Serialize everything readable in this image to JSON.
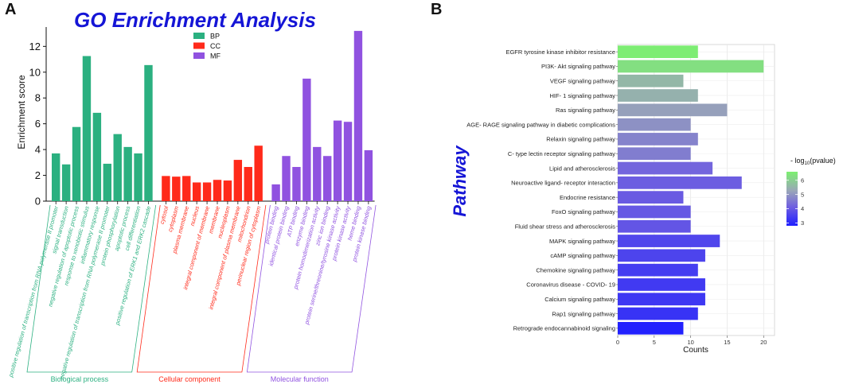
{
  "chart_data": [
    {
      "panel": "A",
      "type": "bar",
      "title": "GO Enrichment Analysis",
      "xlabel": "",
      "ylabel": "Enrichment score",
      "ylim": [
        0,
        13.5
      ],
      "yticks": [
        0,
        2,
        4,
        6,
        8,
        10,
        12
      ],
      "legend": [
        {
          "name": "BP",
          "color": "#2bb080"
        },
        {
          "name": "CC",
          "color": "#ff2a1a"
        },
        {
          "name": "MF",
          "color": "#9052e0"
        }
      ],
      "groups": [
        {
          "name": "Biological process",
          "key": "BP",
          "color": "#2bb080",
          "categories": [
            "positive regulation of transcription from RNA polymerase II promoter",
            "signal transduction",
            "negative regulation of apoptotic process",
            "response to xenobiotic stimulus",
            "inflammatory response",
            "negative regulation of transcription from RNA polymerase II promoter",
            "protein phosphorylation",
            "apoptotic process",
            "cell differentiation",
            "positive regulation of ERK1 and ERK2 cascade"
          ],
          "values": [
            3.7,
            2.85,
            5.75,
            11.25,
            6.85,
            2.9,
            5.2,
            4.2,
            3.7,
            10.55
          ]
        },
        {
          "name": "Cellular component",
          "key": "CC",
          "color": "#ff2a1a",
          "categories": [
            "cytosol",
            "cytoplasm",
            "plasma membrane",
            "nucleus",
            "integral component of membrane",
            "membrane",
            "nucleoplasm",
            "integral component of plasma membrane",
            "mitochondrion",
            "perinuclear region of cytoplasm"
          ],
          "values": [
            1.95,
            1.9,
            1.95,
            1.45,
            1.45,
            1.65,
            1.6,
            3.2,
            2.65,
            4.3
          ]
        },
        {
          "name": "Molecular function",
          "key": "MF",
          "color": "#9052e0",
          "categories": [
            "protein binding",
            "identical protein binding",
            "ATP binding",
            "enzyme binding",
            "protein homodimerization activity",
            "zinc ion binding",
            "protein serine/threonine/tyrosine kinase activity",
            "protein kinase activity",
            "heme binding",
            "protein kinase binding"
          ],
          "values": [
            1.3,
            3.5,
            2.65,
            9.5,
            4.2,
            3.5,
            6.25,
            6.15,
            13.2,
            3.95
          ]
        }
      ]
    },
    {
      "panel": "B",
      "type": "bar",
      "orientation": "horizontal",
      "title": "",
      "ylabel": "Pathway",
      "xlabel": "Counts",
      "xlim": [
        0,
        21.5
      ],
      "xticks": [
        0,
        5,
        10,
        15,
        20
      ],
      "colorbar_title_prefix": "- log",
      "colorbar_title_sub": "10",
      "colorbar_title_suffix": "(pvalue)",
      "colorbar_range": [
        2.8,
        6.6
      ],
      "colorbar_ticks": [
        3,
        4,
        5,
        6
      ],
      "categories": [
        "EGFR tyrosine kinase inhibitor resistance",
        "PI3K- Akt signaling pathway",
        "VEGF signaling pathway",
        "HIF- 1 signaling pathway",
        "Ras signaling pathway",
        "AGE- RAGE signaling pathway in diabetic complications",
        "Relaxin signaling pathway",
        "C- type lectin receptor signaling pathway",
        "Lipid and atherosclerosis",
        "Neuroactive ligand- receptor interaction",
        "Endocrine resistance",
        "FoxO signaling pathway",
        "Fluid shear stress and atherosclerosis",
        "MAPK signaling pathway",
        "cAMP signaling pathway",
        "Chemokine signaling pathway",
        "Coronavirus disease -  COVID- 19",
        "Calcium signaling pathway",
        "Rap1 signaling pathway",
        "Retrograde endocannabinoid signaling"
      ],
      "values": [
        11,
        20,
        9,
        11,
        15,
        10,
        11,
        10,
        13,
        17,
        9,
        10,
        10,
        14,
        12,
        11,
        12,
        12,
        11,
        9
      ],
      "neglog10_pvalue": [
        6.55,
        6.3,
        5.6,
        5.5,
        5.2,
        4.95,
        4.7,
        4.6,
        4.2,
        4.05,
        4.0,
        3.95,
        3.9,
        3.6,
        3.55,
        3.4,
        3.35,
        3.3,
        3.2,
        2.85
      ]
    }
  ]
}
